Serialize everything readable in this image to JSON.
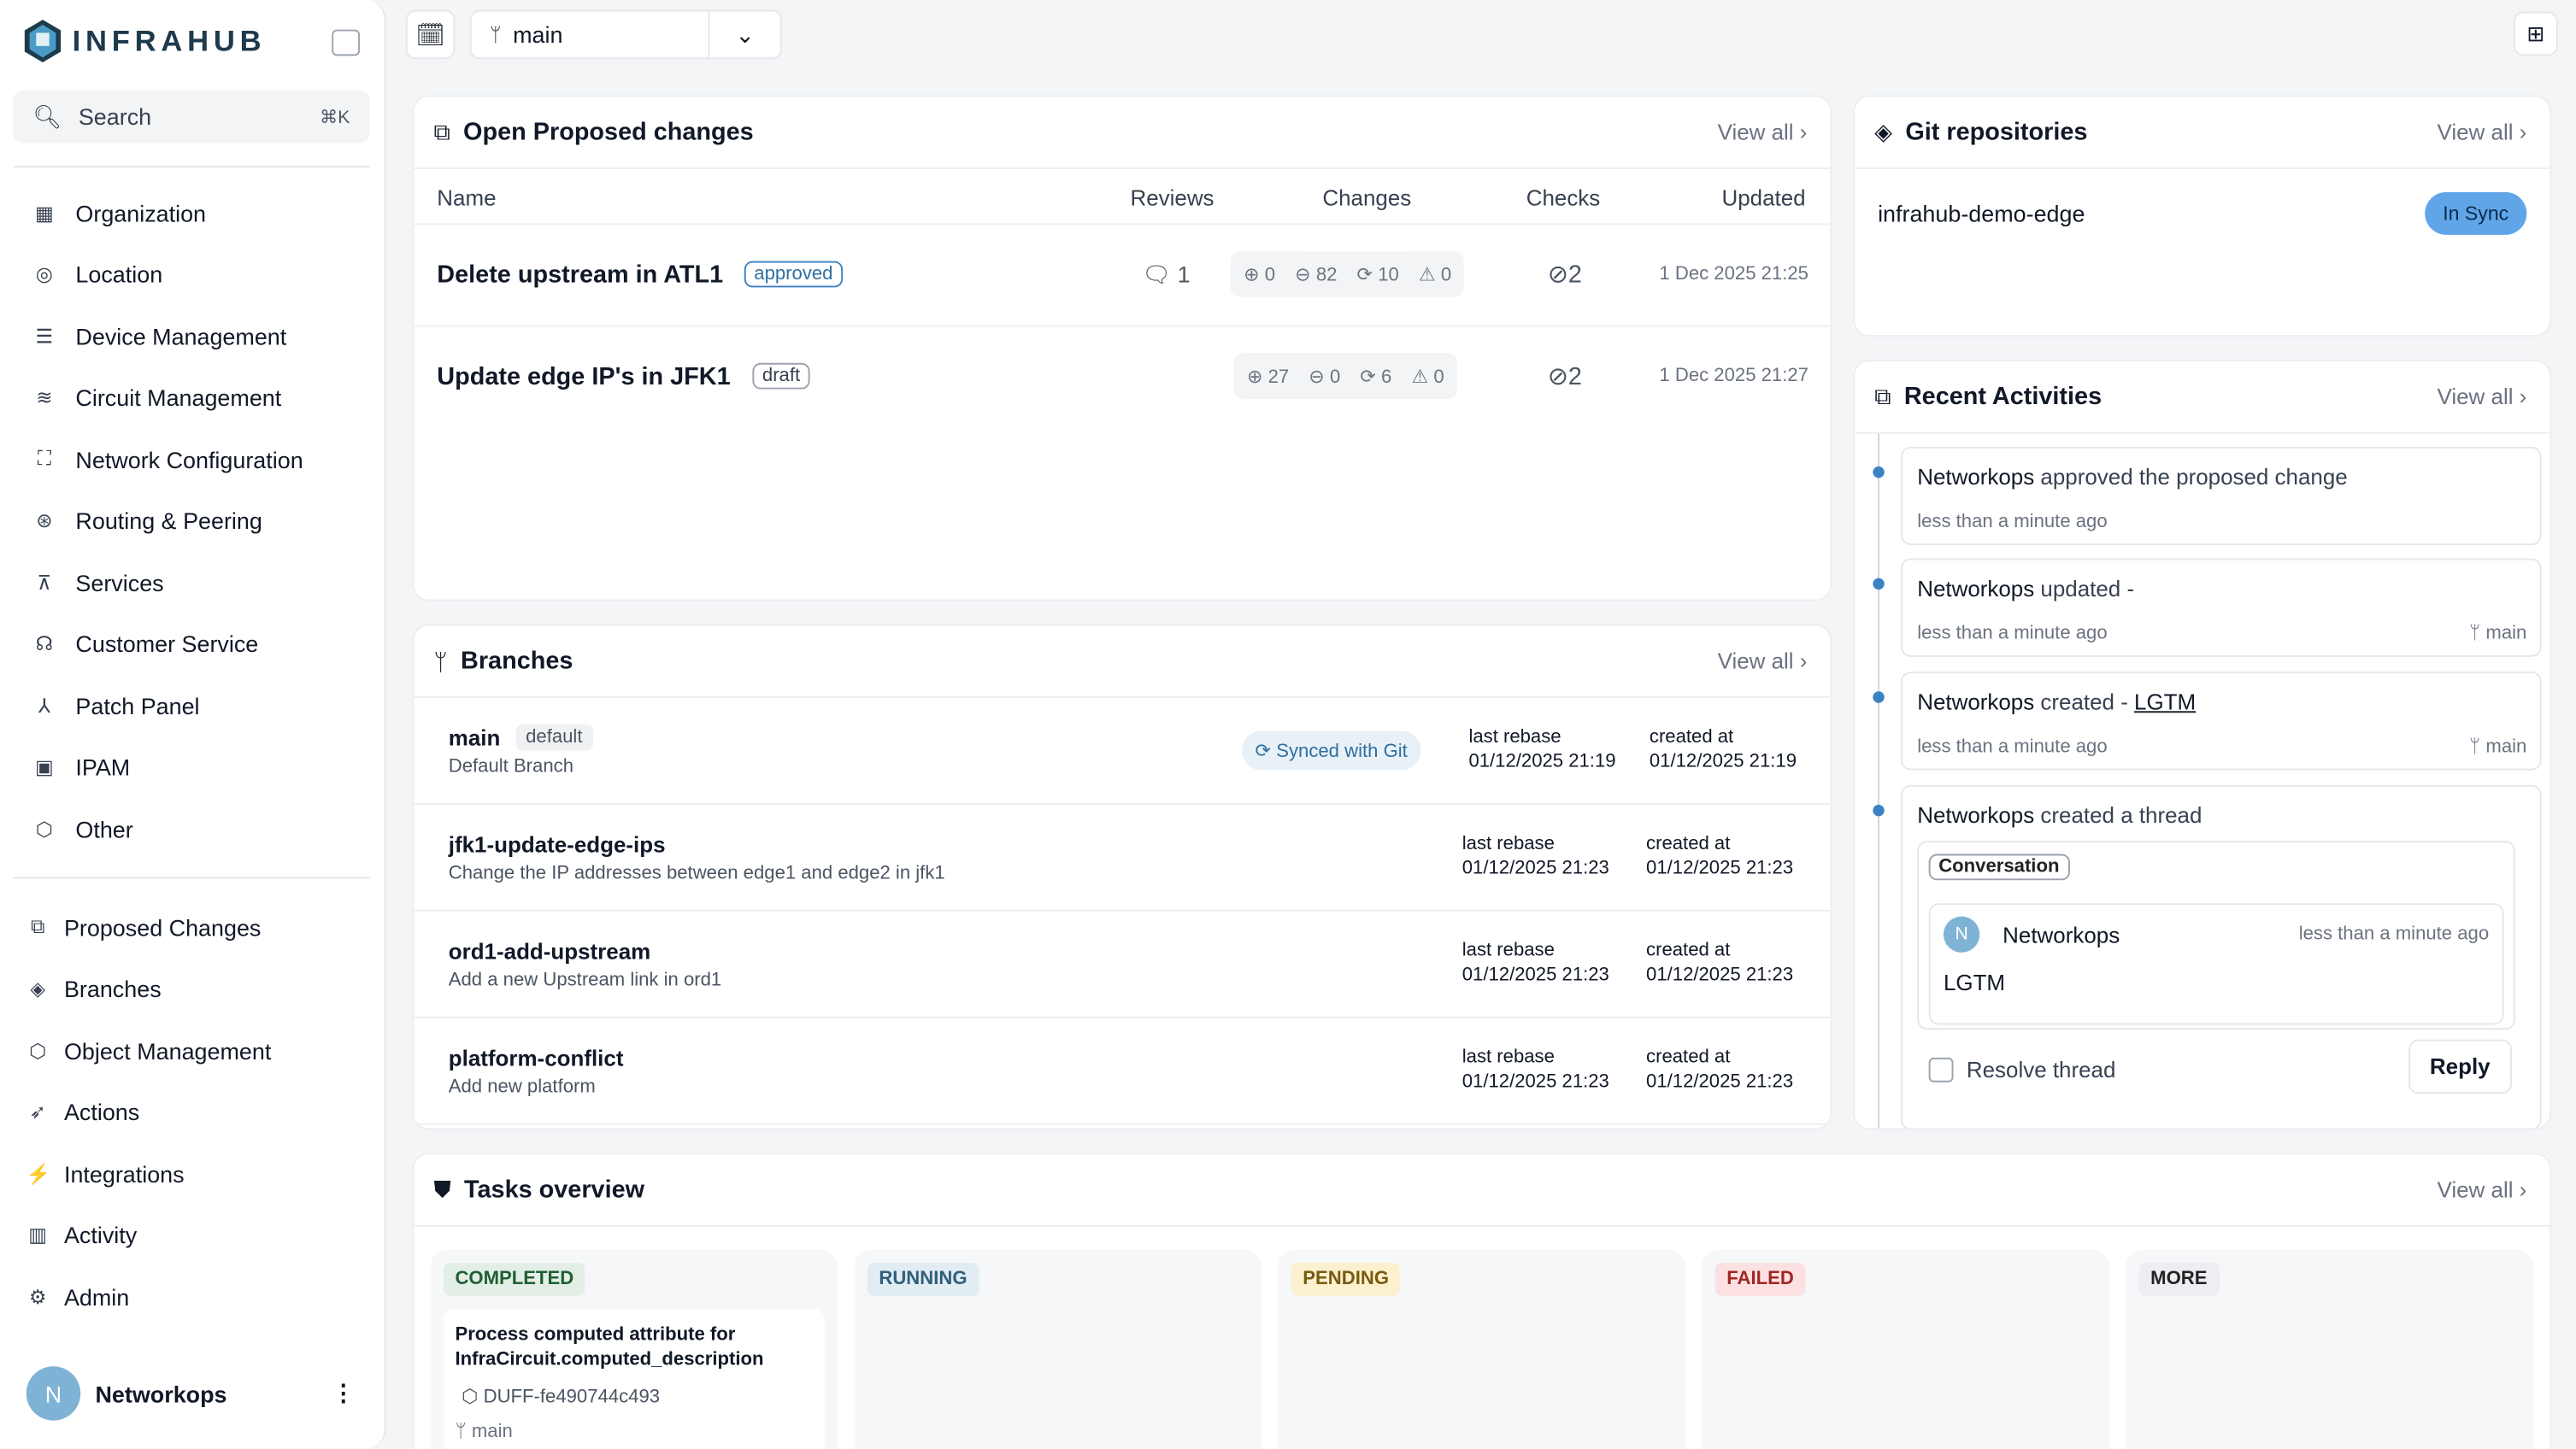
{
  "app": {
    "name": "INFRAHUB"
  },
  "search": {
    "placeholder": "Search",
    "shortcut": "⌘K"
  },
  "sidebar": {
    "items": [
      {
        "label": "Organization",
        "icon": "building-icon"
      },
      {
        "label": "Location",
        "icon": "pin-icon"
      },
      {
        "label": "Device Management",
        "icon": "server-icon"
      },
      {
        "label": "Circuit Management",
        "icon": "circuit-icon"
      },
      {
        "label": "Network Configuration",
        "icon": "network-icon"
      },
      {
        "label": "Routing & Peering",
        "icon": "routing-icon"
      },
      {
        "label": "Services",
        "icon": "sitemap-icon"
      },
      {
        "label": "Customer Service",
        "icon": "handshake-icon"
      },
      {
        "label": "Patch Panel",
        "icon": "patch-icon"
      },
      {
        "label": "IPAM",
        "icon": "ipam-icon"
      },
      {
        "label": "Other",
        "icon": "cube-icon"
      }
    ],
    "system_items": [
      {
        "label": "Proposed Changes",
        "icon": "proposed-changes-icon"
      },
      {
        "label": "Branches",
        "icon": "layers-icon"
      },
      {
        "label": "Object Management",
        "icon": "cube-icon"
      },
      {
        "label": "Actions",
        "icon": "rocket-icon"
      },
      {
        "label": "Integrations",
        "icon": "plug-icon"
      },
      {
        "label": "Activity",
        "icon": "chart-icon"
      },
      {
        "label": "Admin",
        "icon": "gear-icon"
      }
    ]
  },
  "user": {
    "initial": "N",
    "name": "Networkops"
  },
  "topbar": {
    "branch": "main"
  },
  "proposed": {
    "title": "Open Proposed changes",
    "view_all": "View all ›",
    "columns": [
      "Name",
      "Reviews",
      "Changes",
      "Checks",
      "Updated"
    ],
    "rows": [
      {
        "name": "Delete upstream in ATL1",
        "status": "approved",
        "reviews": "1",
        "added": "0",
        "removed": "82",
        "updated": "10",
        "conflicts": "0",
        "checks": "2",
        "date": "1 Dec 2025 21:25"
      },
      {
        "name": "Update edge IP's in JFK1",
        "status": "draft",
        "reviews": "",
        "added": "27",
        "removed": "0",
        "updated": "6",
        "conflicts": "0",
        "checks": "2",
        "date": "1 Dec 2025 21:27"
      }
    ]
  },
  "branches": {
    "title": "Branches",
    "view_all": "View all ›",
    "last_rebase_label": "last rebase",
    "created_label": "created at",
    "rows": [
      {
        "name": "main",
        "badge": "default",
        "desc": "Default Branch",
        "sync": "Synced with Git",
        "rebase": "01/12/2025 21:19",
        "created": "01/12/2025 21:19"
      },
      {
        "name": "jfk1-update-edge-ips",
        "desc": "Change the IP addresses between edge1 and edge2 in jfk1",
        "rebase": "01/12/2025 21:23",
        "created": "01/12/2025 21:23"
      },
      {
        "name": "ord1-add-upstream",
        "desc": "Add a new Upstream link in ord1",
        "rebase": "01/12/2025 21:23",
        "created": "01/12/2025 21:23"
      },
      {
        "name": "platform-conflict",
        "desc": "Add new platform",
        "rebase": "01/12/2025 21:23",
        "created": "01/12/2025 21:23"
      }
    ]
  },
  "git": {
    "title": "Git repositories",
    "view_all": "View all ›",
    "repo": "infrahub-demo-edge",
    "status": "In Sync"
  },
  "activities": {
    "title": "Recent Activities",
    "view_all": "View all ›",
    "items": [
      {
        "actor": "Networkops",
        "text": " approved the proposed change",
        "time": "less than a minute ago",
        "branch": ""
      },
      {
        "actor": "Networkops",
        "text": " updated -",
        "time": "less than a minute ago",
        "branch": "main"
      },
      {
        "actor": "Networkops",
        "text": " created - ",
        "link": "LGTM",
        "time": "less than a minute ago",
        "branch": "main"
      },
      {
        "actor": "Networkops",
        "text": " created a thread"
      }
    ],
    "thread": {
      "label": "Conversation",
      "author_initial": "N",
      "author": "Networkops",
      "time": "less than a minute ago",
      "message": "LGTM",
      "resolve": "Resolve thread",
      "reply": "Reply"
    }
  },
  "tasks": {
    "title": "Tasks overview",
    "view_all": "View all ›",
    "columns": [
      {
        "label": "COMPLETED",
        "color": "#1f5f34",
        "bg": "#e3efe6"
      },
      {
        "label": "RUNNING",
        "color": "#2f5f7a",
        "bg": "#e1ecf3"
      },
      {
        "label": "PENDING",
        "color": "#7a5a10",
        "bg": "#fbf1cf"
      },
      {
        "label": "FAILED",
        "color": "#a02626",
        "bg": "#fbe1e1"
      },
      {
        "label": "MORE",
        "color": "#222",
        "bg": "#eceef1"
      }
    ],
    "task": {
      "title": "Process computed attribute for InfraCircuit.computed_description",
      "id": "DUFF-fe490744c493",
      "branch": "main"
    }
  }
}
